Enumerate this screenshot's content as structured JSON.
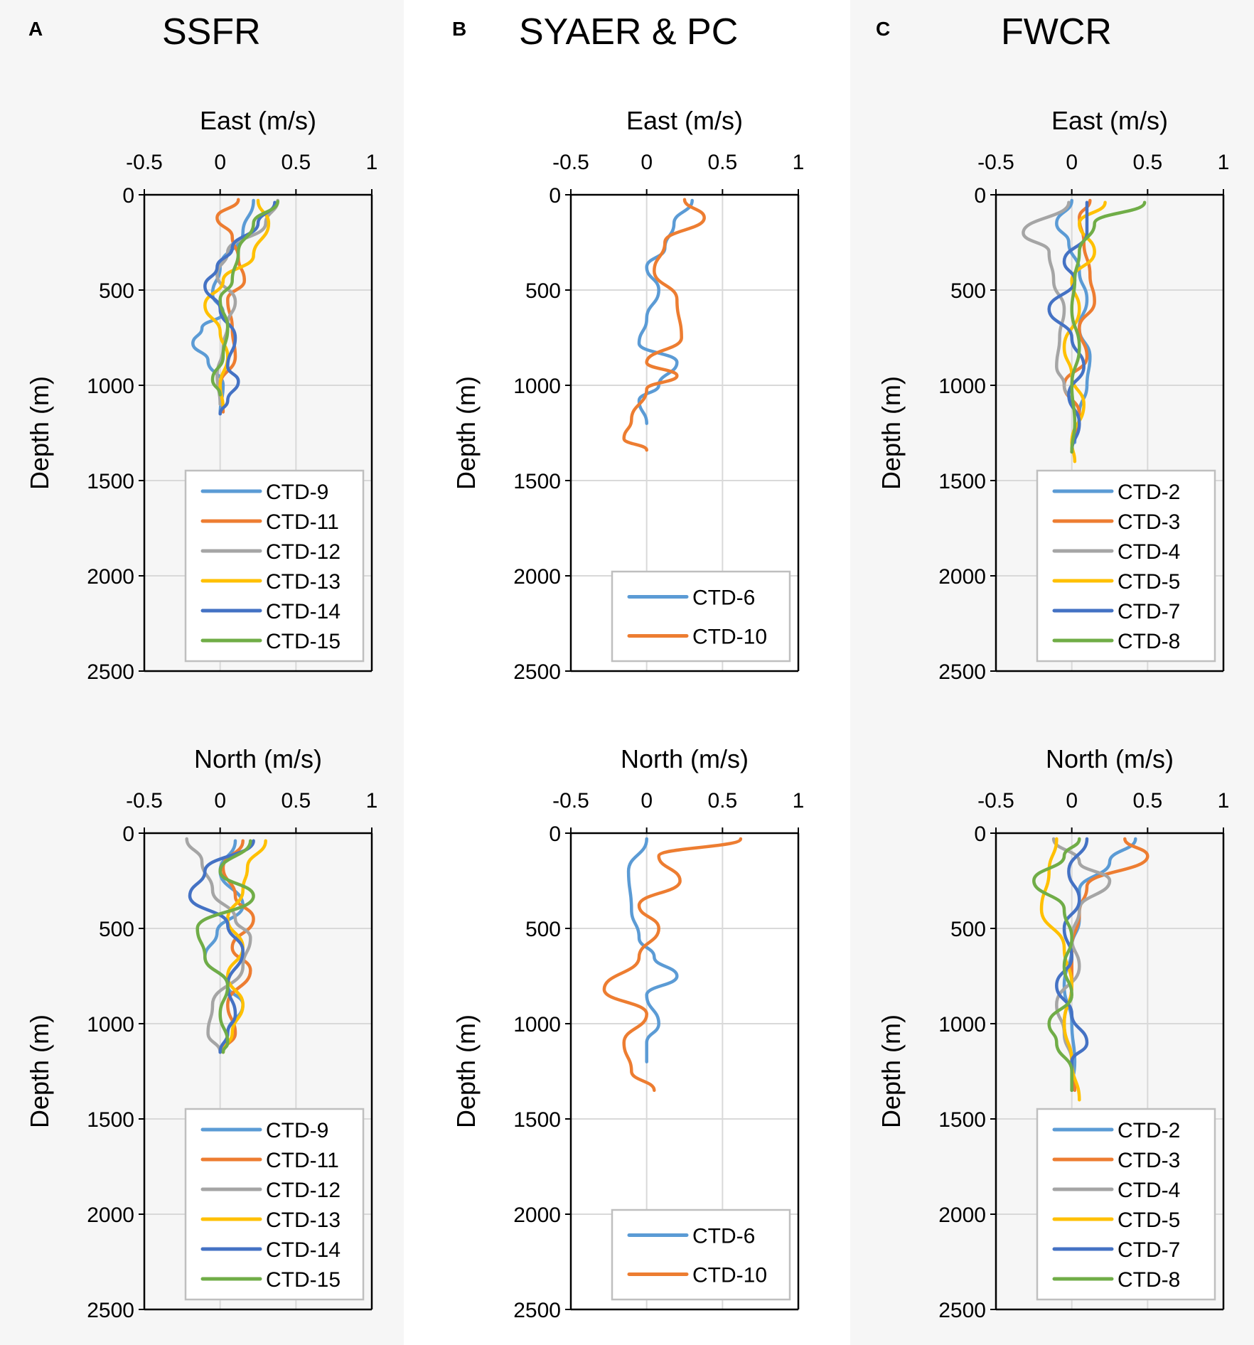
{
  "colors": {
    "panel_shade": "#f6f6f6",
    "axis": "#000000",
    "grid": "#d9d9d9",
    "legend_border": "#bfbfbf",
    "blue": "#5b9bd5",
    "orange": "#ed7d31",
    "gray": "#a5a5a5",
    "yellow": "#ffc000",
    "darkblue": "#4472c4",
    "green": "#70ad47"
  },
  "panels": [
    {
      "letter": "A",
      "title": "SSFR"
    },
    {
      "letter": "B",
      "title": "SYAER & PC"
    },
    {
      "letter": "C",
      "title": "FWCR"
    }
  ],
  "chart_data": [
    {
      "type": "line",
      "panel": "A",
      "title": "East (m/s)",
      "xlabel": "East (m/s)",
      "ylabel": "Depth (m)",
      "xlim": [
        -0.5,
        1
      ],
      "ylim": [
        2500,
        0
      ],
      "xticks": [
        -0.5,
        0,
        0.5,
        1
      ],
      "yticks": [
        0,
        500,
        1000,
        1500,
        2000,
        2500
      ],
      "legend": "bottom",
      "series": [
        {
          "name": "CTD-9",
          "color": "blue",
          "depth": [
            30,
            200,
            380,
            520,
            620,
            700,
            780,
            870,
            1000,
            1150
          ],
          "values": [
            0.22,
            0.15,
            0.0,
            -0.05,
            0.02,
            -0.12,
            -0.18,
            -0.08,
            0.02,
            0.0
          ]
        },
        {
          "name": "CTD-11",
          "color": "orange",
          "depth": [
            25,
            120,
            220,
            330,
            450,
            550,
            700,
            850,
            1000,
            1140
          ],
          "values": [
            0.12,
            -0.02,
            0.08,
            0.12,
            0.16,
            0.05,
            0.08,
            0.1,
            0.0,
            0.02
          ]
        },
        {
          "name": "CTD-12",
          "color": "gray",
          "depth": [
            30,
            150,
            300,
            420,
            560,
            680,
            800,
            950,
            1100
          ],
          "values": [
            0.38,
            0.3,
            0.05,
            -0.02,
            0.1,
            0.05,
            0.02,
            -0.02,
            0.0
          ]
        },
        {
          "name": "CTD-13",
          "color": "yellow",
          "depth": [
            30,
            150,
            320,
            450,
            580,
            720,
            850,
            1000,
            1120
          ],
          "values": [
            0.25,
            0.32,
            0.22,
            0.02,
            -0.1,
            0.0,
            0.05,
            0.0,
            0.02
          ]
        },
        {
          "name": "CTD-14",
          "color": "darkblue",
          "depth": [
            40,
            150,
            280,
            380,
            480,
            600,
            750,
            900,
            980,
            1080,
            1150
          ],
          "values": [
            0.36,
            0.25,
            0.08,
            -0.02,
            -0.1,
            0.0,
            0.1,
            0.05,
            0.12,
            0.05,
            0.0
          ]
        },
        {
          "name": "CTD-15",
          "color": "green",
          "depth": [
            35,
            150,
            300,
            450,
            550,
            700,
            850,
            970,
            1050
          ],
          "values": [
            0.38,
            0.22,
            0.12,
            0.08,
            0.0,
            0.05,
            0.02,
            -0.05,
            0.0
          ]
        }
      ]
    },
    {
      "type": "line",
      "panel": "B",
      "title": "East (m/s)",
      "xlabel": "East (m/s)",
      "ylabel": "Depth (m)",
      "xlim": [
        -0.5,
        1
      ],
      "ylim": [
        2500,
        0
      ],
      "xticks": [
        -0.5,
        0,
        0.5,
        1
      ],
      "yticks": [
        0,
        500,
        1000,
        1500,
        2000,
        2500
      ],
      "legend": "bottom",
      "series": [
        {
          "name": "CTD-6",
          "color": "blue",
          "depth": [
            30,
            150,
            280,
            380,
            500,
            650,
            780,
            880,
            1000,
            1080,
            1200
          ],
          "values": [
            0.3,
            0.18,
            0.12,
            0.0,
            0.08,
            0.0,
            -0.05,
            0.2,
            0.08,
            -0.05,
            0.0
          ]
        },
        {
          "name": "CTD-10",
          "color": "orange",
          "depth": [
            25,
            120,
            250,
            400,
            550,
            750,
            880,
            950,
            1020,
            1180,
            1280,
            1340
          ],
          "values": [
            0.25,
            0.38,
            0.12,
            0.05,
            0.2,
            0.23,
            0.0,
            0.2,
            0.0,
            -0.1,
            -0.15,
            0.0
          ]
        }
      ]
    },
    {
      "type": "line",
      "panel": "C",
      "title": "East (m/s)",
      "xlabel": "East (m/s)",
      "ylabel": "Depth (m)",
      "xlim": [
        -0.5,
        1
      ],
      "ylim": [
        2500,
        0
      ],
      "xticks": [
        -0.5,
        0,
        0.5,
        1
      ],
      "yticks": [
        0,
        500,
        1000,
        1500,
        2000,
        2500
      ],
      "legend": "bottom",
      "series": [
        {
          "name": "CTD-2",
          "color": "blue",
          "depth": [
            30,
            150,
            250,
            400,
            550,
            700,
            850,
            1000,
            1150,
            1300
          ],
          "values": [
            0.0,
            -0.1,
            -0.02,
            0.05,
            0.1,
            0.05,
            0.12,
            0.1,
            0.05,
            0.02
          ]
        },
        {
          "name": "CTD-3",
          "color": "orange",
          "depth": [
            30,
            120,
            250,
            420,
            560,
            700,
            850,
            1000,
            1150,
            1350
          ],
          "values": [
            0.12,
            0.05,
            0.08,
            0.12,
            0.15,
            0.05,
            0.1,
            -0.05,
            0.05,
            0.0
          ]
        },
        {
          "name": "CTD-4",
          "color": "gray",
          "depth": [
            40,
            200,
            300,
            450,
            600,
            750,
            900,
            1000,
            1100
          ],
          "values": [
            -0.02,
            -0.32,
            -0.15,
            -0.12,
            -0.05,
            -0.08,
            -0.1,
            -0.05,
            0.0
          ]
        },
        {
          "name": "CTD-5",
          "color": "yellow",
          "depth": [
            40,
            150,
            300,
            450,
            600,
            800,
            950,
            1100,
            1300,
            1400
          ],
          "values": [
            0.22,
            0.05,
            0.15,
            0.0,
            0.05,
            -0.05,
            0.0,
            0.08,
            0.0,
            0.02
          ]
        },
        {
          "name": "CTD-7",
          "color": "darkblue",
          "depth": [
            40,
            200,
            350,
            450,
            600,
            750,
            900,
            1050,
            1200,
            1350
          ],
          "values": [
            0.1,
            0.1,
            -0.05,
            0.02,
            -0.15,
            0.0,
            0.08,
            -0.02,
            0.05,
            0.0
          ]
        },
        {
          "name": "CTD-8",
          "color": "green",
          "depth": [
            40,
            150,
            300,
            450,
            600,
            800,
            1000,
            1200,
            1350
          ],
          "values": [
            0.48,
            0.15,
            0.05,
            0.02,
            0.0,
            0.05,
            0.0,
            0.02,
            0.0
          ]
        }
      ]
    },
    {
      "type": "line",
      "panel": "A",
      "title": "North (m/s)",
      "xlabel": "North (m/s)",
      "ylabel": "Depth (m)",
      "xlim": [
        -0.5,
        1
      ],
      "ylim": [
        2500,
        0
      ],
      "xticks": [
        -0.5,
        0,
        0.5,
        1
      ],
      "yticks": [
        0,
        500,
        1000,
        1500,
        2000,
        2500
      ],
      "legend": "bottom",
      "series": [
        {
          "name": "CTD-9",
          "color": "blue",
          "depth": [
            40,
            200,
            380,
            520,
            650,
            800,
            900,
            1050,
            1150
          ],
          "values": [
            0.1,
            0.0,
            0.15,
            -0.02,
            -0.1,
            0.05,
            0.15,
            0.05,
            0.0
          ]
        },
        {
          "name": "CTD-11",
          "color": "orange",
          "depth": [
            40,
            180,
            330,
            450,
            600,
            720,
            900,
            1050,
            1150
          ],
          "values": [
            0.15,
            0.02,
            0.1,
            0.22,
            0.08,
            0.2,
            0.05,
            0.1,
            0.02
          ]
        },
        {
          "name": "CTD-12",
          "color": "gray",
          "depth": [
            30,
            150,
            300,
            450,
            550,
            700,
            900,
            1050,
            1150
          ],
          "values": [
            -0.22,
            -0.12,
            -0.05,
            0.1,
            0.2,
            0.15,
            -0.05,
            -0.08,
            0.0
          ]
        },
        {
          "name": "CTD-13",
          "color": "yellow",
          "depth": [
            40,
            180,
            300,
            450,
            600,
            750,
            900,
            1050,
            1150
          ],
          "values": [
            0.3,
            0.18,
            0.15,
            0.05,
            0.15,
            0.05,
            0.15,
            0.08,
            0.02
          ]
        },
        {
          "name": "CTD-14",
          "color": "darkblue",
          "depth": [
            40,
            200,
            330,
            480,
            620,
            800,
            950,
            1050,
            1150
          ],
          "values": [
            0.22,
            -0.1,
            -0.2,
            0.05,
            0.15,
            0.05,
            0.1,
            0.05,
            0.0
          ]
        },
        {
          "name": "CTD-15",
          "color": "green",
          "depth": [
            40,
            200,
            330,
            500,
            650,
            800,
            950,
            1100,
            1150
          ],
          "values": [
            0.2,
            0.0,
            0.22,
            -0.15,
            -0.1,
            0.05,
            0.0,
            0.05,
            0.02
          ]
        }
      ]
    },
    {
      "type": "line",
      "panel": "B",
      "title": "North (m/s)",
      "xlabel": "North (m/s)",
      "ylabel": "Depth (m)",
      "xlim": [
        -0.5,
        1
      ],
      "ylim": [
        2500,
        0
      ],
      "xticks": [
        -0.5,
        0,
        0.5,
        1
      ],
      "yticks": [
        0,
        500,
        1000,
        1500,
        2000,
        2500
      ],
      "legend": "bottom",
      "series": [
        {
          "name": "CTD-6",
          "color": "blue",
          "depth": [
            30,
            200,
            400,
            550,
            650,
            750,
            850,
            1000,
            1100,
            1200
          ],
          "values": [
            0.0,
            -0.12,
            -0.1,
            -0.05,
            0.05,
            0.2,
            0.0,
            0.08,
            0.0,
            0.0
          ]
        },
        {
          "name": "CTD-10",
          "color": "orange",
          "depth": [
            30,
            120,
            250,
            380,
            500,
            650,
            820,
            950,
            1100,
            1250,
            1350
          ],
          "values": [
            0.62,
            0.08,
            0.22,
            -0.05,
            0.08,
            -0.05,
            -0.28,
            0.0,
            -0.15,
            -0.1,
            0.05
          ]
        }
      ]
    },
    {
      "type": "line",
      "panel": "C",
      "title": "North (m/s)",
      "xlabel": "North (m/s)",
      "ylabel": "Depth (m)",
      "xlim": [
        -0.5,
        1
      ],
      "ylim": [
        2500,
        0
      ],
      "xticks": [
        -0.5,
        0,
        0.5,
        1
      ],
      "yticks": [
        0,
        500,
        1000,
        1500,
        2000,
        2500
      ],
      "legend": "bottom",
      "series": [
        {
          "name": "CTD-2",
          "color": "blue",
          "depth": [
            30,
            150,
            300,
            450,
            600,
            800,
            1000,
            1200,
            1350
          ],
          "values": [
            0.42,
            0.25,
            0.05,
            0.05,
            0.0,
            -0.05,
            0.0,
            0.02,
            0.0
          ]
        },
        {
          "name": "CTD-3",
          "color": "orange",
          "depth": [
            30,
            120,
            280,
            420,
            600,
            800,
            1000,
            1200,
            1350
          ],
          "values": [
            0.35,
            0.5,
            0.1,
            0.05,
            0.0,
            0.0,
            -0.05,
            0.0,
            0.02
          ]
        },
        {
          "name": "CTD-4",
          "color": "gray",
          "depth": [
            30,
            150,
            250,
            400,
            550,
            700,
            900,
            1050,
            1200
          ],
          "values": [
            -0.12,
            0.05,
            0.25,
            0.05,
            0.0,
            0.05,
            -0.1,
            -0.05,
            0.0
          ]
        },
        {
          "name": "CTD-5",
          "color": "yellow",
          "depth": [
            30,
            200,
            400,
            600,
            800,
            1000,
            1200,
            1400
          ],
          "values": [
            -0.1,
            -0.15,
            -0.2,
            -0.05,
            0.0,
            -0.05,
            0.0,
            0.05
          ]
        },
        {
          "name": "CTD-7",
          "color": "darkblue",
          "depth": [
            30,
            200,
            350,
            500,
            650,
            800,
            950,
            1100,
            1200,
            1350
          ],
          "values": [
            0.1,
            -0.02,
            0.05,
            -0.05,
            0.0,
            -0.1,
            0.0,
            0.1,
            0.0,
            0.0
          ]
        },
        {
          "name": "CTD-8",
          "color": "green",
          "depth": [
            30,
            120,
            250,
            400,
            550,
            700,
            850,
            1000,
            1100,
            1250,
            1350
          ],
          "values": [
            0.05,
            -0.05,
            -0.25,
            -0.05,
            0.0,
            -0.05,
            0.0,
            -0.15,
            -0.1,
            0.0,
            0.0
          ]
        }
      ]
    }
  ]
}
